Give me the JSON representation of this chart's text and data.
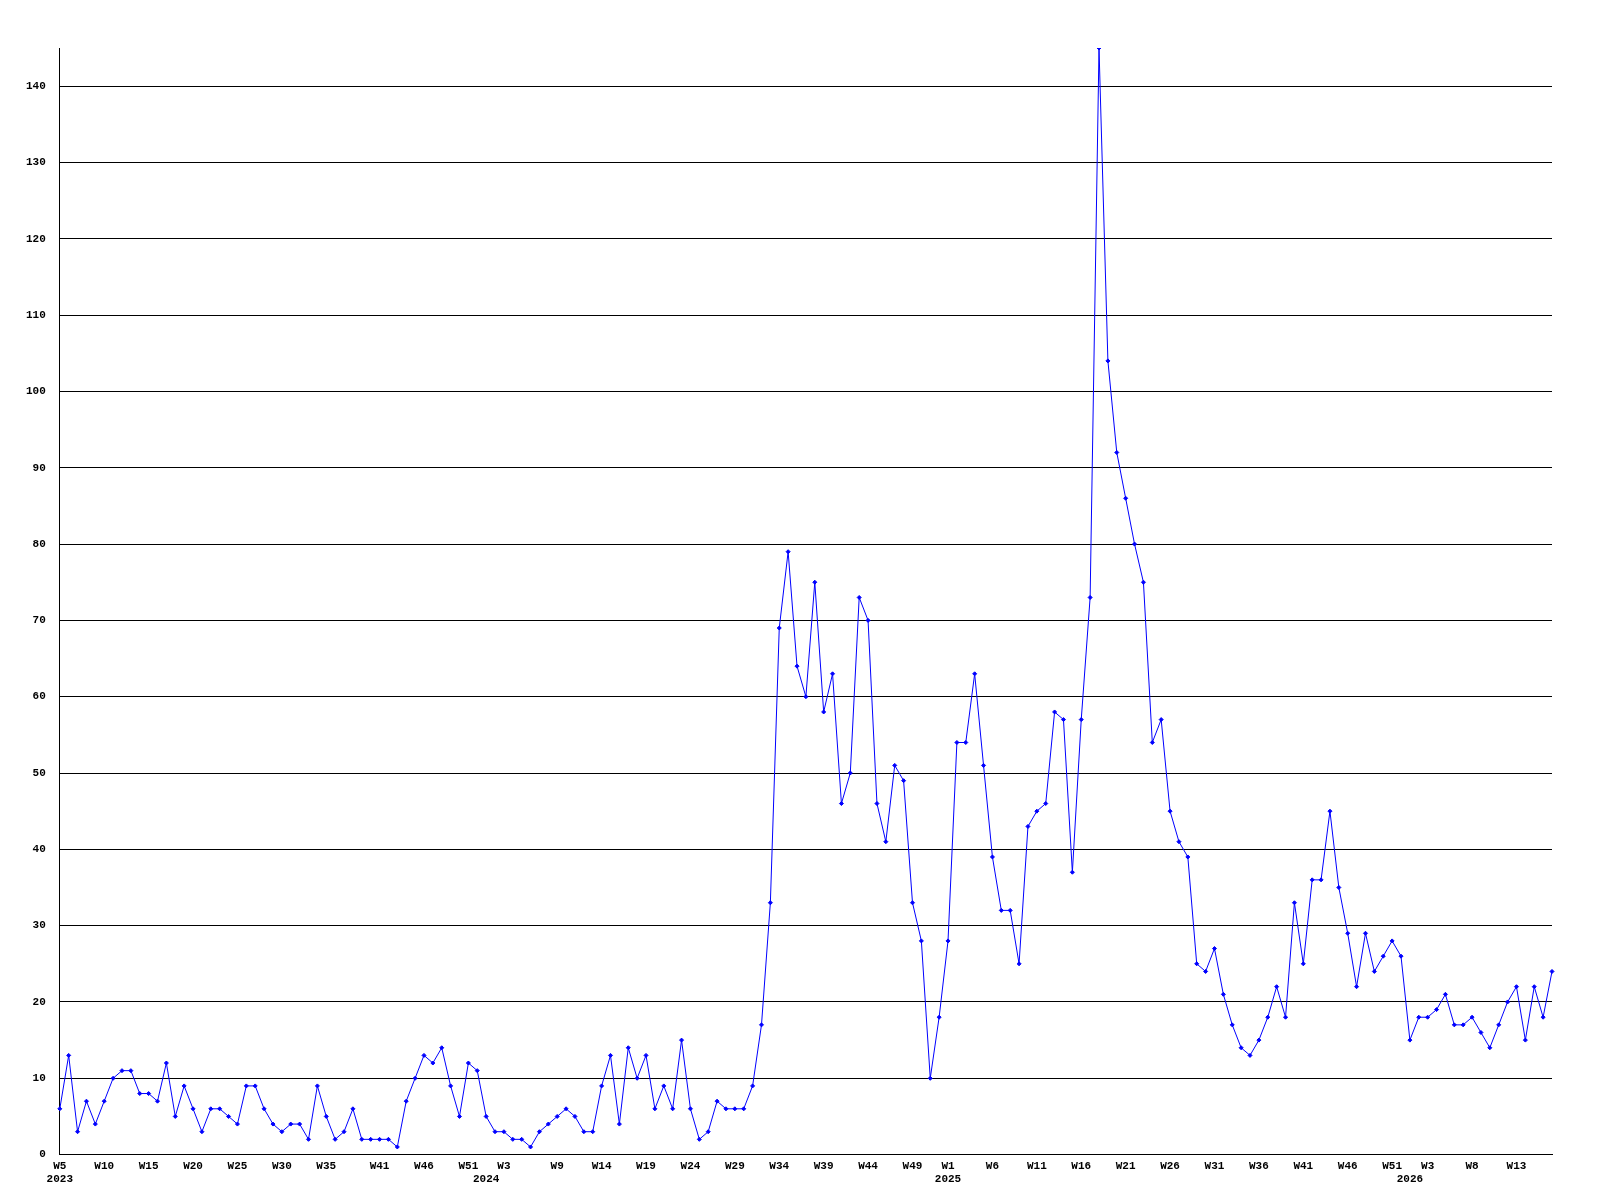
{
  "chart_data": {
    "type": "line",
    "categories": [
      "W5\n2023",
      null,
      null,
      null,
      null,
      "W10",
      null,
      null,
      null,
      null,
      "W15",
      null,
      null,
      null,
      null,
      "W20",
      null,
      null,
      null,
      null,
      "W25",
      null,
      null,
      null,
      null,
      "W30",
      null,
      null,
      null,
      null,
      "W35",
      null,
      null,
      null,
      null,
      null,
      "W41",
      null,
      null,
      null,
      null,
      "W46",
      null,
      null,
      null,
      null,
      "W51",
      null,
      "\n2024",
      null,
      "W3",
      null,
      null,
      null,
      null,
      null,
      "W9",
      null,
      null,
      null,
      null,
      "W14",
      null,
      null,
      null,
      null,
      "W19",
      null,
      null,
      null,
      null,
      "W24",
      null,
      null,
      null,
      null,
      "W29",
      null,
      null,
      null,
      null,
      "W34",
      null,
      null,
      null,
      null,
      "W39",
      null,
      null,
      null,
      null,
      "W44",
      null,
      null,
      null,
      null,
      "W49",
      null,
      null,
      null,
      "W1\n2025",
      null,
      null,
      null,
      null,
      "W6",
      null,
      null,
      null,
      null,
      "W11",
      null,
      null,
      null,
      null,
      "W16",
      null,
      null,
      null,
      null,
      "W21",
      null,
      null,
      null,
      null,
      "W26",
      null,
      null,
      null,
      null,
      "W31",
      null,
      null,
      null,
      null,
      "W36",
      null,
      null,
      null,
      null,
      "W41",
      null,
      null,
      null,
      null,
      "W46",
      null,
      null,
      null,
      null,
      "W51",
      null,
      "\n2026",
      null,
      "W3",
      null,
      null,
      null,
      null,
      "W8",
      null,
      null,
      null,
      null,
      "W13",
      null,
      null,
      null,
      null
    ],
    "series": [
      {
        "color": "#0000ff",
        "values": [
          6,
          13,
          3,
          7,
          4,
          7,
          10,
          11,
          11,
          8,
          8,
          7,
          12,
          5,
          9,
          6,
          3,
          6,
          6,
          5,
          4,
          9,
          9,
          6,
          4,
          3,
          4,
          4,
          2,
          9,
          5,
          2,
          3,
          6,
          2,
          2,
          2,
          2,
          1,
          7,
          10,
          13,
          12,
          14,
          9,
          5,
          12,
          11,
          5,
          3,
          3,
          2,
          2,
          1,
          3,
          4,
          5,
          6,
          5,
          3,
          3,
          9,
          13,
          4,
          14,
          10,
          13,
          6,
          9,
          6,
          15,
          6,
          2,
          3,
          7,
          6,
          6,
          6,
          9,
          17,
          33,
          69,
          79,
          64,
          60,
          75,
          58,
          63,
          46,
          50,
          73,
          70,
          46,
          41,
          51,
          49,
          33,
          28,
          10,
          18,
          28,
          54,
          54,
          63,
          51,
          39,
          32,
          32,
          25,
          43,
          45,
          46,
          58,
          57,
          37,
          57,
          73,
          145,
          104,
          92,
          86,
          80,
          75,
          54,
          57,
          45,
          41,
          39,
          25,
          24,
          27,
          21,
          17,
          14,
          13,
          15,
          18,
          22,
          18,
          33,
          25,
          36,
          36,
          45,
          35,
          29,
          22,
          29,
          24,
          26,
          28,
          26,
          15,
          18,
          18,
          19,
          21,
          17,
          17,
          18,
          16,
          14,
          17,
          20,
          22,
          15,
          22,
          18,
          24
        ]
      }
    ],
    "ylim": [
      0,
      145
    ],
    "yticks": [
      0,
      10,
      20,
      30,
      40,
      50,
      60,
      70,
      80,
      90,
      100,
      110,
      120,
      130,
      140
    ],
    "grid": "y",
    "legend": false,
    "marker": "diamond",
    "line_style": "solid"
  }
}
